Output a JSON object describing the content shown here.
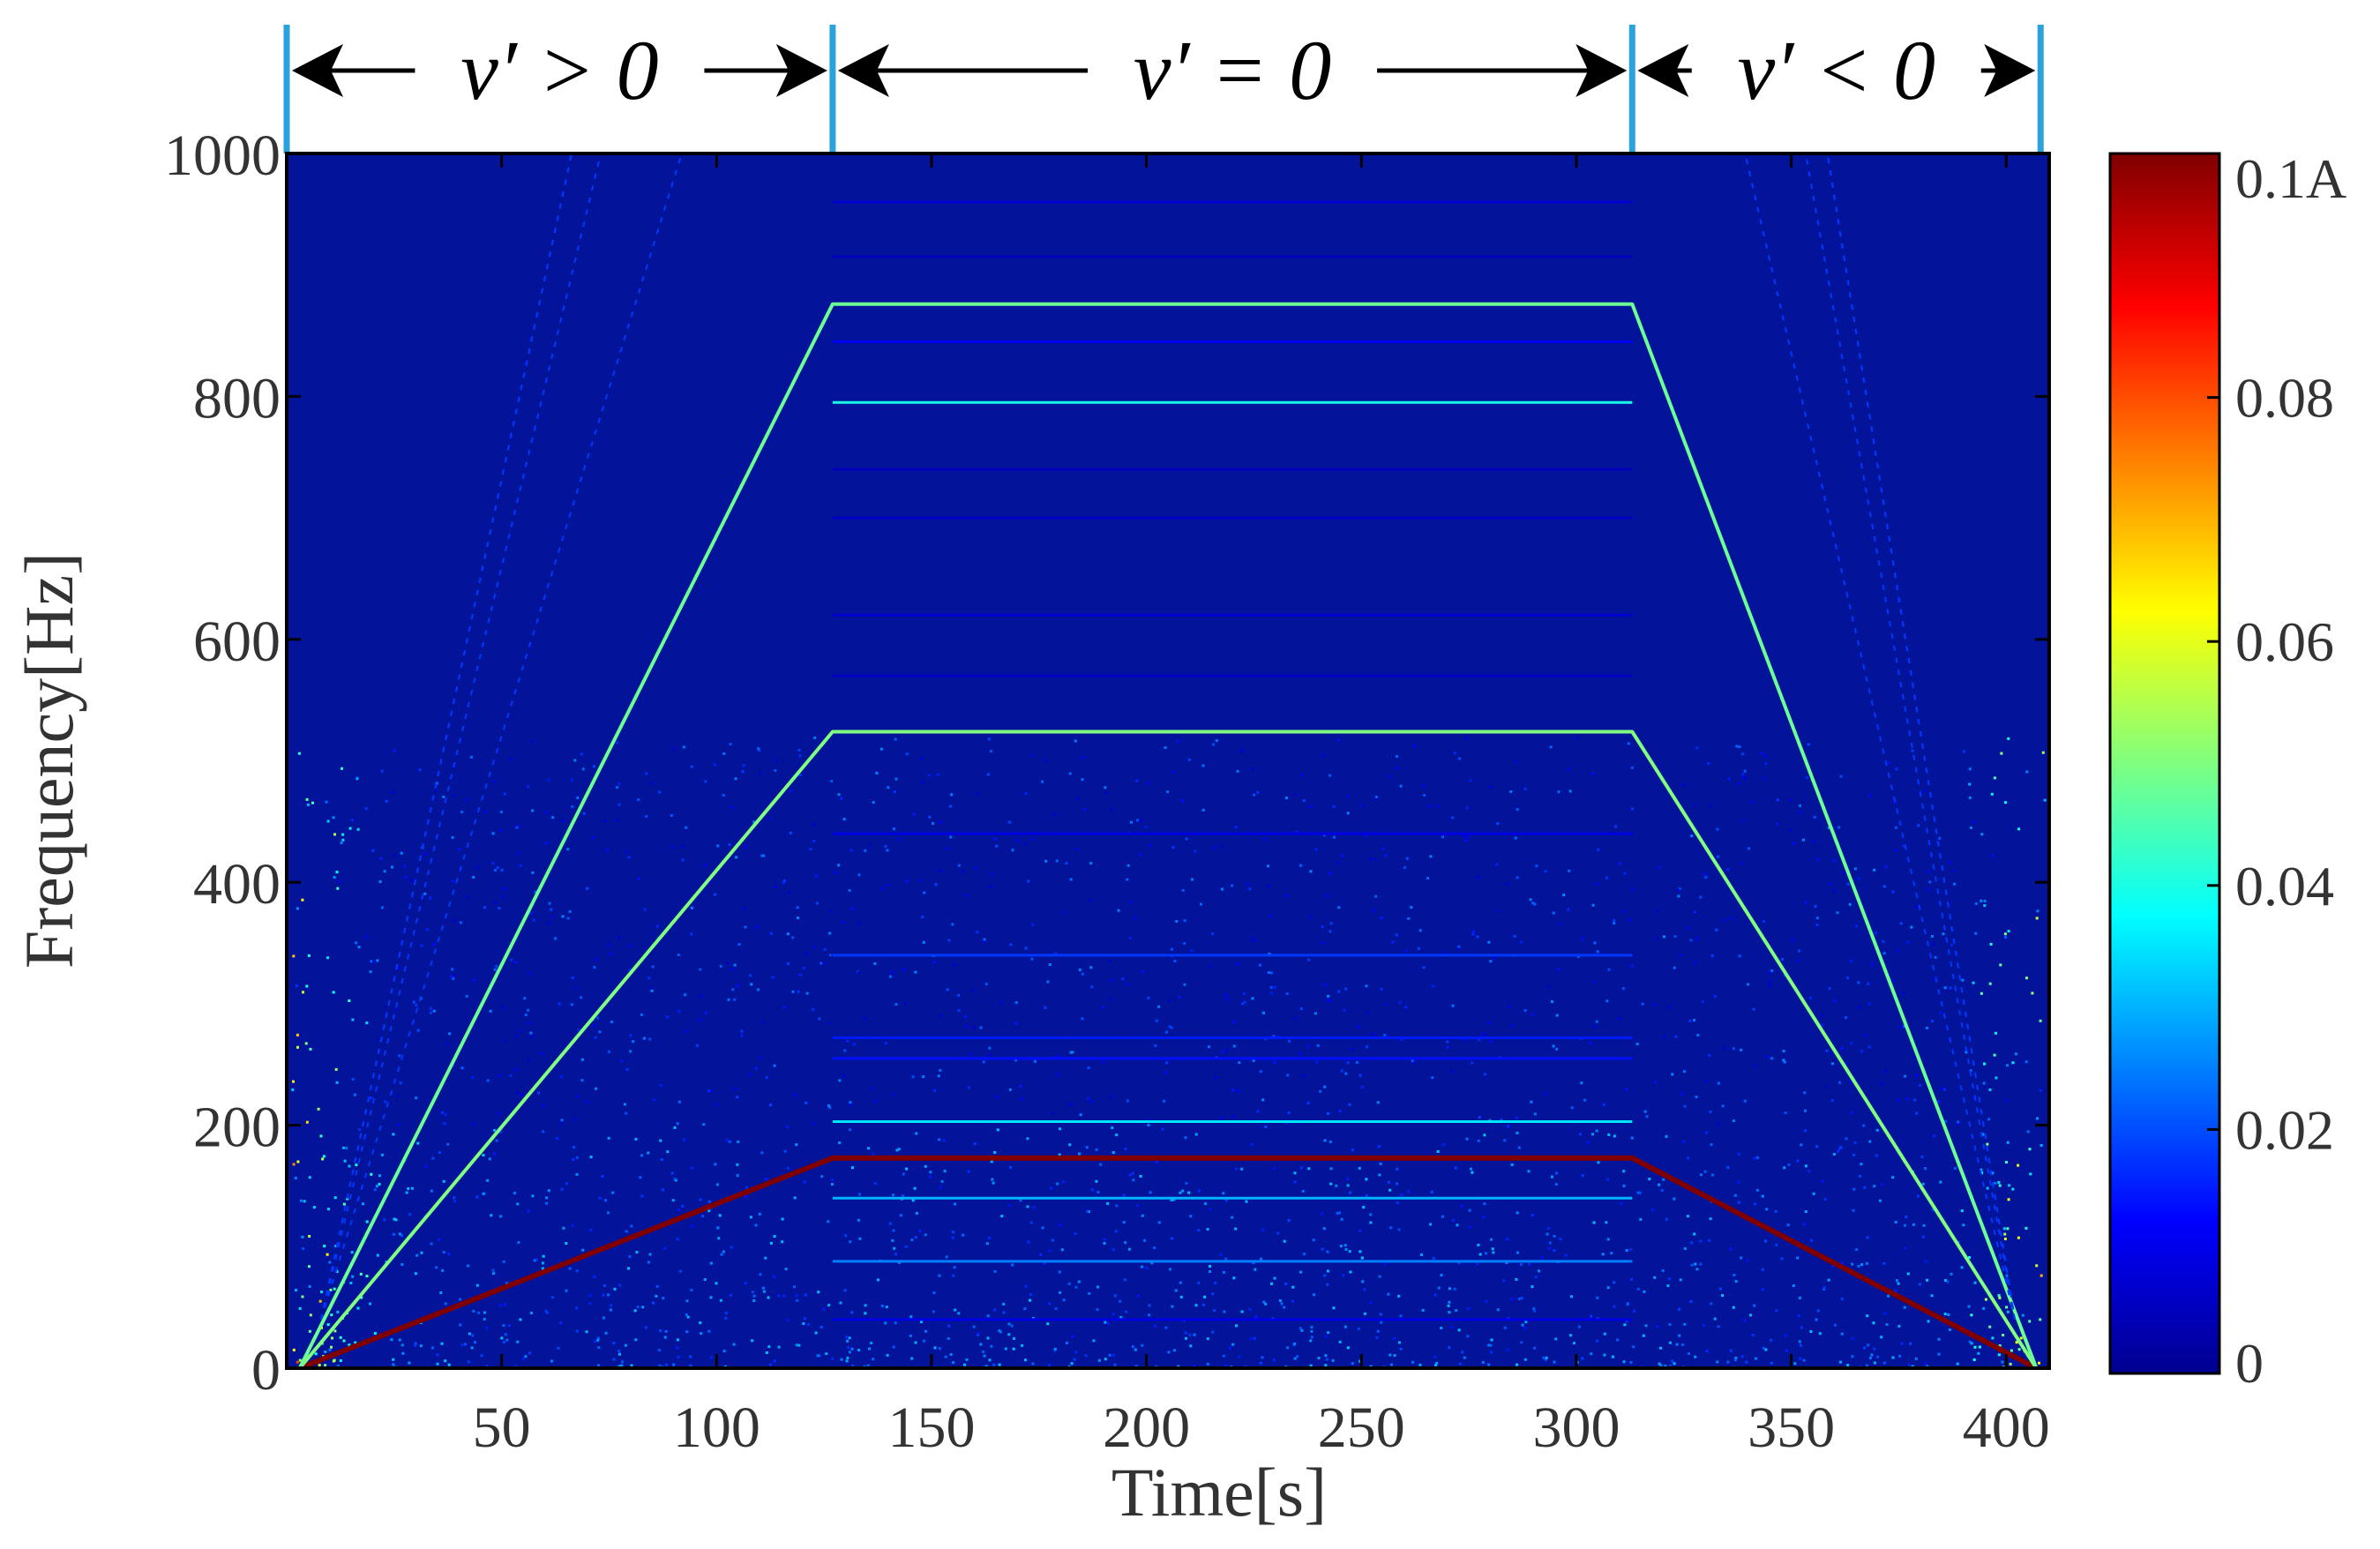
{
  "chart_data": {
    "type": "heatmap",
    "title": "",
    "xlabel": "Time[s]",
    "ylabel": "Frequency[Hz]",
    "xlim": [
      0,
      410
    ],
    "ylim": [
      0,
      1000
    ],
    "x_ticks": [
      {
        "value": 50,
        "label": "50"
      },
      {
        "value": 100,
        "label": "100"
      },
      {
        "value": 150,
        "label": "150"
      },
      {
        "value": 200,
        "label": "200"
      },
      {
        "value": 250,
        "label": "250"
      },
      {
        "value": 300,
        "label": "300"
      },
      {
        "value": 350,
        "label": "350"
      },
      {
        "value": 400,
        "label": "400"
      }
    ],
    "y_ticks": [
      {
        "value": 0,
        "label": "0"
      },
      {
        "value": 200,
        "label": "200"
      },
      {
        "value": 400,
        "label": "400"
      },
      {
        "value": 600,
        "label": "600"
      },
      {
        "value": 800,
        "label": "800"
      },
      {
        "value": 1000,
        "label": "1000"
      }
    ],
    "colorbar": {
      "colormap": "jet",
      "range": [
        0,
        0.1
      ],
      "ticks": [
        {
          "value": 0,
          "label": "0"
        },
        {
          "value": 0.02,
          "label": "0.02"
        },
        {
          "value": 0.04,
          "label": "0.04"
        },
        {
          "value": 0.06,
          "label": "0.06"
        },
        {
          "value": 0.08,
          "label": "0.08"
        },
        {
          "value": 0.1,
          "label": "0.1A"
        }
      ]
    },
    "phases": [
      {
        "label": "v′ > 0",
        "start": 0,
        "end": 127
      },
      {
        "label": "v′ = 0",
        "start": 127,
        "end": 313
      },
      {
        "label": "v′ < 0",
        "start": 313,
        "end": 408
      }
    ],
    "phase_boundaries": [
      0,
      127,
      313,
      408
    ],
    "ridges": [
      {
        "f_hold": 173,
        "amplitude": 0.1,
        "t_hold_start": 127,
        "t_hold_end": 313
      },
      {
        "f_hold": 524,
        "amplitude": 0.05,
        "t_hold_start": 127,
        "t_hold_end": 313
      },
      {
        "f_hold": 876,
        "amplitude": 0.048,
        "t_hold_start": 127,
        "t_hold_end": 313
      }
    ],
    "constant_lines": [
      {
        "f": 795,
        "amplitude": 0.04
      },
      {
        "f": 203,
        "amplitude": 0.035
      },
      {
        "f": 140,
        "amplitude": 0.03
      },
      {
        "f": 88,
        "amplitude": 0.025
      },
      {
        "f": 340,
        "amplitude": 0.018
      },
      {
        "f": 272,
        "amplitude": 0.015
      },
      {
        "f": 255,
        "amplitude": 0.014
      },
      {
        "f": 845,
        "amplitude": 0.012
      },
      {
        "f": 440,
        "amplitude": 0.01
      },
      {
        "f": 960,
        "amplitude": 0.008
      },
      {
        "f": 620,
        "amplitude": 0.008
      },
      {
        "f": 700,
        "amplitude": 0.007
      },
      {
        "f": 570,
        "amplitude": 0.007
      },
      {
        "f": 915,
        "amplitude": 0.006
      },
      {
        "f": 740,
        "amplitude": 0.006
      },
      {
        "f": 40,
        "amplitude": 0.01
      }
    ]
  }
}
